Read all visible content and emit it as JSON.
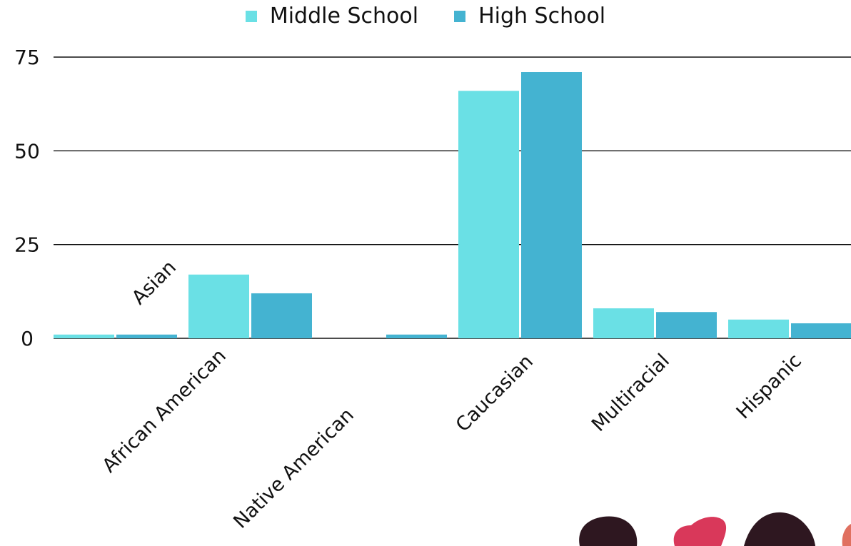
{
  "chart_data": {
    "type": "bar",
    "categories": [
      "Asian",
      "African American",
      "Native American",
      "Caucasian",
      "Multiracial",
      "Hispanic"
    ],
    "series": [
      {
        "name": "Middle School",
        "values": [
          1,
          17,
          0,
          66,
          8,
          5
        ],
        "color": "#6ae0e5"
      },
      {
        "name": "High School",
        "values": [
          1,
          12,
          1,
          71,
          7,
          4
        ],
        "color": "#44b3d1"
      }
    ],
    "y_ticks": [
      0,
      25,
      50,
      75
    ],
    "ylim": [
      0,
      75
    ],
    "grid": true,
    "legend_position": "top-center",
    "title": "",
    "xlabel": "",
    "ylabel": ""
  },
  "legend": {
    "items": [
      {
        "label": "Middle School",
        "color": "#6ae0e5"
      },
      {
        "label": "High School",
        "color": "#44b3d1"
      }
    ]
  },
  "decorations": {
    "blob_colors": [
      "#2e1720",
      "#d9385a",
      "#2e1720",
      "#e07060"
    ]
  }
}
